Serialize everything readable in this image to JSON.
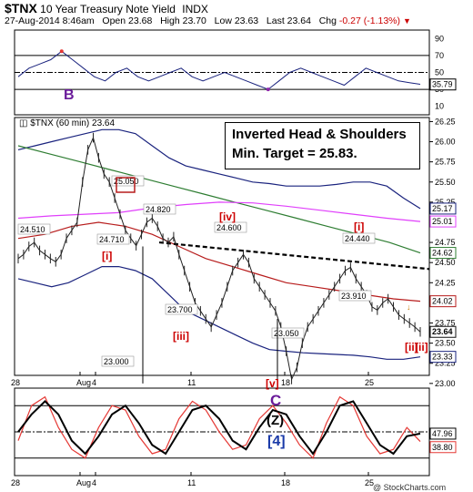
{
  "header": {
    "symbol": "$TNX",
    "name": "10 Year Treasury Note Yield",
    "exchange": "INDX",
    "date": "27-Aug-2014 8:46am",
    "open_label": "Open",
    "open": "23.68",
    "high_label": "High",
    "high": "23.70",
    "low_label": "Low",
    "low": "23.63",
    "last_label": "Last",
    "last": "23.64",
    "chg_label": "Chg",
    "chg": "-0.27 (-1.13%)",
    "watermark": "@ StockCharts.com"
  },
  "colors": {
    "red": "#cc0000",
    "blue_band": "#1a237e",
    "green_ma": "#2e7d32",
    "magenta_ma": "#e040fb",
    "dark_red_ma": "#b71c1c",
    "price": "#222222",
    "last_tag": "#111111"
  },
  "annotation_box": {
    "line1": "Inverted Head & Shoulders",
    "line2": "Min. Target = 25.83."
  },
  "rsi_panel": {
    "ticks": [
      "90",
      "70",
      "50",
      "30",
      "10"
    ],
    "value_label": "35.79",
    "wave_label": "B"
  },
  "stoch_panel": {
    "value_high": "47.96",
    "value_low": "38.80",
    "label_c": "C",
    "label_z": "(Z)",
    "label_4": "[4]"
  },
  "chart_data": {
    "type": "line",
    "legend": "$TNX (60 min) 23.64",
    "x_ticks": [
      "28",
      "Aug",
      "4",
      "11",
      "18",
      "25"
    ],
    "ylim": [
      23.1,
      26.3
    ],
    "y_ticks": [
      "26.25",
      "26.00",
      "25.75",
      "25.50",
      "25.25",
      "25.00",
      "24.75",
      "24.50",
      "24.25",
      "24.00",
      "23.75",
      "23.50",
      "23.25",
      "23.00"
    ],
    "right_tags": [
      {
        "label": "25.17",
        "y": 25.17
      },
      {
        "label": "25.01",
        "y": 25.01
      },
      {
        "label": "24.62",
        "y": 24.62
      },
      {
        "label": "24.02",
        "y": 24.02
      },
      {
        "label": "23.64",
        "y": 23.64
      },
      {
        "label": "23.33",
        "y": 23.33
      }
    ],
    "price_labels": [
      {
        "text": "24.510",
        "y": 24.51
      },
      {
        "text": "25.050",
        "y": 25.05
      },
      {
        "text": "24.710",
        "y": 24.71
      },
      {
        "text": "24.820",
        "y": 24.82
      },
      {
        "text": "24.600",
        "y": 24.6
      },
      {
        "text": "23.700",
        "y": 23.7
      },
      {
        "text": "23.000",
        "y": 23.0
      },
      {
        "text": "23.050",
        "y": 23.05
      },
      {
        "text": "24.440",
        "y": 24.44
      },
      {
        "text": "23.910",
        "y": 23.91
      }
    ],
    "wave_labels": [
      "[i]",
      "[ii]",
      "[iii]",
      "[iv]",
      "[v]",
      "[i]",
      "[ii]"
    ],
    "neckline": [
      24.75,
      24.42
    ],
    "series_close": [
      24.55,
      24.6,
      24.7,
      24.75,
      24.65,
      24.6,
      24.55,
      24.51,
      24.6,
      24.8,
      24.9,
      25.0,
      25.5,
      25.9,
      26.05,
      25.8,
      25.6,
      25.5,
      25.3,
      25.1,
      24.9,
      24.8,
      24.71,
      24.85,
      25.0,
      25.05,
      24.95,
      24.8,
      24.75,
      24.82,
      24.6,
      24.4,
      24.2,
      24.0,
      23.9,
      23.8,
      23.7,
      23.85,
      24.0,
      24.2,
      24.4,
      24.5,
      24.6,
      24.5,
      24.3,
      24.2,
      24.1,
      24.0,
      23.9,
      23.7,
      23.4,
      23.05,
      23.2,
      23.5,
      23.7,
      23.8,
      23.9,
      24.0,
      24.1,
      24.2,
      24.3,
      24.4,
      24.44,
      24.3,
      24.2,
      24.1,
      23.95,
      23.91,
      24.0,
      24.05,
      23.95,
      23.85,
      23.8,
      23.75,
      23.7,
      23.64
    ],
    "upper_band": [
      25.9,
      25.95,
      26.0,
      26.05,
      26.1,
      26.15,
      26.15,
      26.1,
      25.95,
      25.8,
      25.7,
      25.65,
      25.6,
      25.55,
      25.5,
      25.48,
      25.45,
      25.45,
      25.45,
      25.47,
      25.5,
      25.5,
      25.45,
      25.3,
      25.17
    ],
    "lower_band": [
      24.3,
      24.25,
      24.2,
      24.25,
      24.35,
      24.45,
      24.45,
      24.4,
      24.3,
      24.1,
      23.9,
      23.8,
      23.7,
      23.6,
      23.5,
      23.42,
      23.4,
      23.38,
      23.37,
      23.36,
      23.35,
      23.33,
      23.3,
      23.3,
      23.33
    ],
    "ma_green": [
      25.95,
      25.85,
      25.75,
      25.65,
      25.55,
      25.45,
      25.35,
      25.25,
      25.15,
      25.05,
      24.95,
      24.85,
      24.75,
      24.62
    ],
    "ma_magenta": [
      25.05,
      25.08,
      25.1,
      25.12,
      25.18,
      25.22,
      25.25,
      25.24,
      25.2,
      25.15,
      25.1,
      25.05,
      25.01
    ],
    "ma_darkred": [
      24.8,
      24.85,
      24.95,
      25.0,
      24.95,
      24.85,
      24.7,
      24.55,
      24.45,
      24.35,
      24.25,
      24.2,
      24.15,
      24.1,
      24.05,
      24.02
    ],
    "rsi": [
      45,
      55,
      60,
      65,
      75,
      65,
      55,
      45,
      40,
      50,
      55,
      45,
      40,
      45,
      50,
      55,
      45,
      40,
      45,
      50,
      45,
      40,
      35,
      30,
      40,
      50,
      55,
      50,
      45,
      40,
      35,
      45,
      55,
      50,
      45,
      40,
      38,
      36
    ],
    "stoch_slow": [
      50,
      70,
      85,
      70,
      40,
      25,
      45,
      70,
      80,
      60,
      35,
      25,
      50,
      75,
      80,
      65,
      40,
      30,
      55,
      75,
      70,
      45,
      25,
      50,
      80,
      85,
      60,
      35,
      25,
      45,
      48
    ],
    "stoch_fast": [
      40,
      80,
      90,
      55,
      30,
      20,
      55,
      80,
      75,
      45,
      25,
      30,
      65,
      85,
      75,
      50,
      30,
      35,
      65,
      80,
      60,
      35,
      20,
      60,
      90,
      80,
      45,
      25,
      30,
      55,
      39
    ]
  }
}
